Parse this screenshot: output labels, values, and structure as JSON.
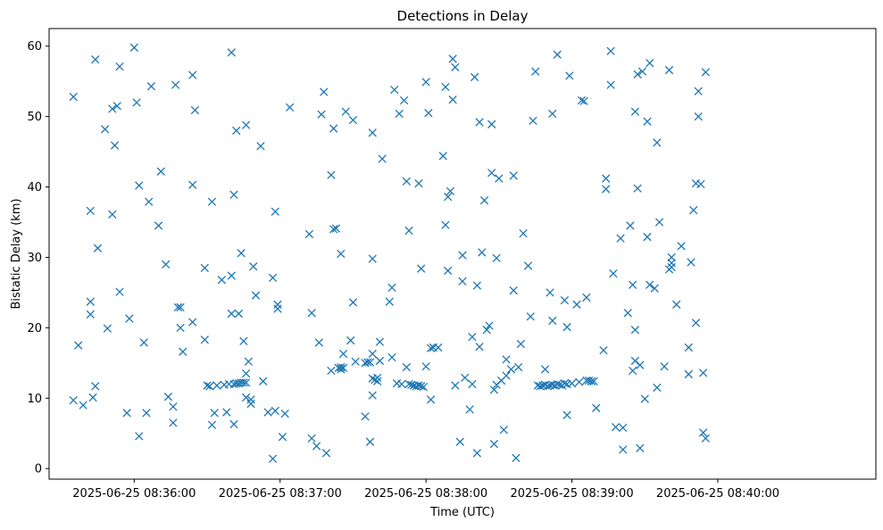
{
  "chart_data": {
    "type": "scatter",
    "title": "Detections in Delay",
    "xlabel": "Time (UTC)",
    "ylabel": "Bistatic Delay (km)",
    "marker": "x",
    "color": "#1f77b4",
    "grid": false,
    "legend": "none",
    "x_ticks": [
      "2025-06-25 08:36:00",
      "2025-06-25 08:37:00",
      "2025-06-25 08:38:00",
      "2025-06-25 08:39:00",
      "2025-06-25 08:40:00"
    ],
    "y_ticks": [
      0,
      10,
      20,
      30,
      40,
      50,
      60
    ],
    "xlim": [
      "2025-06-25 08:35:25",
      "2025-06-25 08:41:05"
    ],
    "ylim": [
      -1.5,
      62.5
    ],
    "x_unit": "seconds after 2025-06-25 08:35:00",
    "points": [
      [
        35,
        52.8
      ],
      [
        35,
        9.7
      ],
      [
        37,
        17.5
      ],
      [
        39,
        9
      ],
      [
        42,
        23.7
      ],
      [
        42,
        21.9
      ],
      [
        42,
        36.6
      ],
      [
        43,
        10.1
      ],
      [
        44,
        11.7
      ],
      [
        44,
        58.1
      ],
      [
        45,
        31.3
      ],
      [
        48,
        48.2
      ],
      [
        49,
        19.9
      ],
      [
        51,
        51.1
      ],
      [
        51,
        36.1
      ],
      [
        52,
        45.9
      ],
      [
        53,
        51.5
      ],
      [
        54,
        25.1
      ],
      [
        54,
        57.1
      ],
      [
        57,
        7.9
      ],
      [
        58,
        21.3
      ],
      [
        60,
        59.8
      ],
      [
        61,
        52
      ],
      [
        62,
        40.2
      ],
      [
        62,
        4.6
      ],
      [
        64,
        17.9
      ],
      [
        65,
        7.9
      ],
      [
        66,
        37.9
      ],
      [
        67,
        54.3
      ],
      [
        70,
        34.5
      ],
      [
        71,
        42.2
      ],
      [
        73,
        29
      ],
      [
        74,
        10.2
      ],
      [
        76,
        8.8
      ],
      [
        76,
        6.5
      ],
      [
        77,
        54.5
      ],
      [
        78,
        22.9
      ],
      [
        79,
        22.9
      ],
      [
        79,
        20
      ],
      [
        80,
        16.6
      ],
      [
        84,
        20.8
      ],
      [
        84,
        40.3
      ],
      [
        84,
        55.9
      ],
      [
        85,
        50.9
      ],
      [
        89,
        18.3
      ],
      [
        89,
        28.5
      ],
      [
        90,
        11.8
      ],
      [
        91,
        11.7
      ],
      [
        92,
        37.9
      ],
      [
        92,
        6.2
      ],
      [
        93,
        7.9
      ],
      [
        94,
        11.8
      ],
      [
        96,
        26.8
      ],
      [
        97,
        11.9
      ],
      [
        98,
        8
      ],
      [
        99,
        12
      ],
      [
        100,
        27.4
      ],
      [
        100,
        22
      ],
      [
        100,
        59.1
      ],
      [
        101,
        6.3
      ],
      [
        101,
        38.9
      ],
      [
        101,
        12
      ],
      [
        102,
        12.1
      ],
      [
        102,
        48
      ],
      [
        103,
        22
      ],
      [
        103,
        12.1
      ],
      [
        104,
        12.2
      ],
      [
        104,
        30.6
      ],
      [
        105,
        18.1
      ],
      [
        105,
        12.2
      ],
      [
        106,
        12.2
      ],
      [
        106,
        13.5
      ],
      [
        106,
        48.8
      ],
      [
        106,
        10.1
      ],
      [
        107,
        15.2
      ],
      [
        108,
        9.8
      ],
      [
        108,
        9.2
      ],
      [
        109,
        28.7
      ],
      [
        110,
        24.6
      ],
      [
        112,
        45.8
      ],
      [
        113,
        12.4
      ],
      [
        115,
        8
      ],
      [
        117,
        27.1
      ],
      [
        117,
        1.4
      ],
      [
        118,
        36.5
      ],
      [
        118,
        8.2
      ],
      [
        119,
        23.3
      ],
      [
        119,
        22.7
      ],
      [
        121,
        4.5
      ],
      [
        122,
        7.8
      ],
      [
        124,
        51.3
      ],
      [
        132,
        33.3
      ],
      [
        133,
        4.3
      ],
      [
        133,
        22.1
      ],
      [
        135,
        3.2
      ],
      [
        136,
        17.9
      ],
      [
        137,
        50.3
      ],
      [
        138,
        53.5
      ],
      [
        139,
        2.2
      ],
      [
        141,
        13.9
      ],
      [
        141,
        41.7
      ],
      [
        142,
        48.3
      ],
      [
        142,
        34
      ],
      [
        143,
        34.1
      ],
      [
        144,
        14.3
      ],
      [
        145,
        14.1
      ],
      [
        145,
        14.4
      ],
      [
        145,
        30.5
      ],
      [
        146,
        14.3
      ],
      [
        146,
        16.3
      ],
      [
        147,
        50.7
      ],
      [
        149,
        18.2
      ],
      [
        150,
        49.5
      ],
      [
        150,
        23.6
      ],
      [
        151,
        15.2
      ],
      [
        155,
        15
      ],
      [
        155,
        7.4
      ],
      [
        156,
        15.1
      ],
      [
        157,
        15.1
      ],
      [
        157,
        3.8
      ],
      [
        158,
        29.8
      ],
      [
        158,
        47.7
      ],
      [
        158,
        12.8
      ],
      [
        158,
        10.4
      ],
      [
        158,
        16.3
      ],
      [
        159,
        12.6
      ],
      [
        160,
        12.4
      ],
      [
        160,
        12.9
      ],
      [
        161,
        15.3
      ],
      [
        161,
        18
      ],
      [
        162,
        44
      ],
      [
        165,
        23.7
      ],
      [
        166,
        15.8
      ],
      [
        166,
        25.7
      ],
      [
        167,
        53.8
      ],
      [
        168,
        12.1
      ],
      [
        169,
        50.4
      ],
      [
        170,
        12
      ],
      [
        171,
        52.3
      ],
      [
        172,
        40.8
      ],
      [
        172,
        14.4
      ],
      [
        173,
        33.8
      ],
      [
        173,
        12
      ],
      [
        174,
        11.9
      ],
      [
        175,
        11.8
      ],
      [
        176,
        11.7
      ],
      [
        177,
        11.8
      ],
      [
        177,
        40.5
      ],
      [
        178,
        11.7
      ],
      [
        178,
        28.4
      ],
      [
        179,
        11.6
      ],
      [
        180,
        14.5
      ],
      [
        180,
        54.9
      ],
      [
        181,
        50.5
      ],
      [
        182,
        17.1
      ],
      [
        182,
        9.8
      ],
      [
        183,
        17.2
      ],
      [
        185,
        17.2
      ],
      [
        187,
        44.4
      ],
      [
        188,
        34.6
      ],
      [
        188,
        54.2
      ],
      [
        189,
        28.1
      ],
      [
        189,
        38.6
      ],
      [
        190,
        39.4
      ],
      [
        191,
        52.4
      ],
      [
        191,
        58.2
      ],
      [
        192,
        57
      ],
      [
        192,
        11.8
      ],
      [
        194,
        3.8
      ],
      [
        195,
        26.6
      ],
      [
        195,
        30.3
      ],
      [
        196,
        12.9
      ],
      [
        198,
        8.4
      ],
      [
        199,
        18.7
      ],
      [
        199,
        12
      ],
      [
        200,
        55.6
      ],
      [
        201,
        2.2
      ],
      [
        201,
        26
      ],
      [
        202,
        17.3
      ],
      [
        202,
        49.2
      ],
      [
        203,
        30.7
      ],
      [
        204,
        38.1
      ],
      [
        205,
        19.7
      ],
      [
        206,
        20.3
      ],
      [
        207,
        48.9
      ],
      [
        207,
        42
      ],
      [
        208,
        3.5
      ],
      [
        208,
        11.2
      ],
      [
        209,
        29.9
      ],
      [
        209,
        11.9
      ],
      [
        210,
        41.2
      ],
      [
        211,
        12.5
      ],
      [
        212,
        5.5
      ],
      [
        213,
        15.5
      ],
      [
        213,
        13.2
      ],
      [
        215,
        14.1
      ],
      [
        216,
        41.6
      ],
      [
        216,
        25.3
      ],
      [
        217,
        1.5
      ],
      [
        218,
        14.4
      ],
      [
        219,
        17.7
      ],
      [
        220,
        33.4
      ],
      [
        222,
        28.8
      ],
      [
        223,
        21.6
      ],
      [
        224,
        49.4
      ],
      [
        225,
        56.4
      ],
      [
        226,
        11.8
      ],
      [
        227,
        11.7
      ],
      [
        228,
        11.8
      ],
      [
        229,
        11.9
      ],
      [
        229,
        14.1
      ],
      [
        230,
        11.7
      ],
      [
        231,
        11.8
      ],
      [
        231,
        25
      ],
      [
        232,
        11.9
      ],
      [
        232,
        21
      ],
      [
        232,
        50.4
      ],
      [
        233,
        11.8
      ],
      [
        234,
        12
      ],
      [
        234,
        58.8
      ],
      [
        235,
        11.9
      ],
      [
        236,
        11.8
      ],
      [
        237,
        12.1
      ],
      [
        237,
        23.9
      ],
      [
        238,
        20.1
      ],
      [
        238,
        12
      ],
      [
        238,
        7.6
      ],
      [
        239,
        55.8
      ],
      [
        240,
        12.1
      ],
      [
        242,
        23.3
      ],
      [
        243,
        12.3
      ],
      [
        244,
        52.3
      ],
      [
        245,
        52.2
      ],
      [
        246,
        12.5
      ],
      [
        246,
        24.3
      ],
      [
        247,
        12.5
      ],
      [
        248,
        12.4
      ],
      [
        249,
        12.4
      ],
      [
        250,
        8.6
      ],
      [
        253,
        16.8
      ],
      [
        254,
        39.7
      ],
      [
        254,
        41.2
      ],
      [
        256,
        54.5
      ],
      [
        256,
        59.3
      ],
      [
        257,
        27.7
      ],
      [
        258,
        5.9
      ],
      [
        260,
        32.7
      ],
      [
        261,
        2.7
      ],
      [
        261,
        5.8
      ],
      [
        263,
        22.1
      ],
      [
        264,
        34.5
      ],
      [
        265,
        26.1
      ],
      [
        265,
        13.9
      ],
      [
        266,
        19.7
      ],
      [
        266,
        15.3
      ],
      [
        266,
        50.7
      ],
      [
        267,
        39.8
      ],
      [
        267,
        56
      ],
      [
        268,
        2.9
      ],
      [
        268,
        14.7
      ],
      [
        269,
        56.4
      ],
      [
        270,
        9.9
      ],
      [
        271,
        32.9
      ],
      [
        271,
        49.3
      ],
      [
        272,
        57.6
      ],
      [
        272,
        26.1
      ],
      [
        274,
        25.6
      ],
      [
        275,
        11.5
      ],
      [
        275,
        46.3
      ],
      [
        276,
        35
      ],
      [
        278,
        14.5
      ],
      [
        280,
        56.6
      ],
      [
        280,
        28.3
      ],
      [
        281,
        30
      ],
      [
        281,
        29.2
      ],
      [
        281,
        28.6
      ],
      [
        283,
        23.3
      ],
      [
        285,
        31.6
      ],
      [
        288,
        17.2
      ],
      [
        288,
        13.4
      ],
      [
        289,
        29.3
      ],
      [
        290,
        36.7
      ],
      [
        291,
        20.7
      ],
      [
        291,
        40.5
      ],
      [
        292,
        50
      ],
      [
        292,
        53.6
      ],
      [
        293,
        40.4
      ],
      [
        294,
        5.1
      ],
      [
        294,
        13.6
      ],
      [
        295,
        4.3
      ],
      [
        295,
        56.3
      ]
    ]
  }
}
